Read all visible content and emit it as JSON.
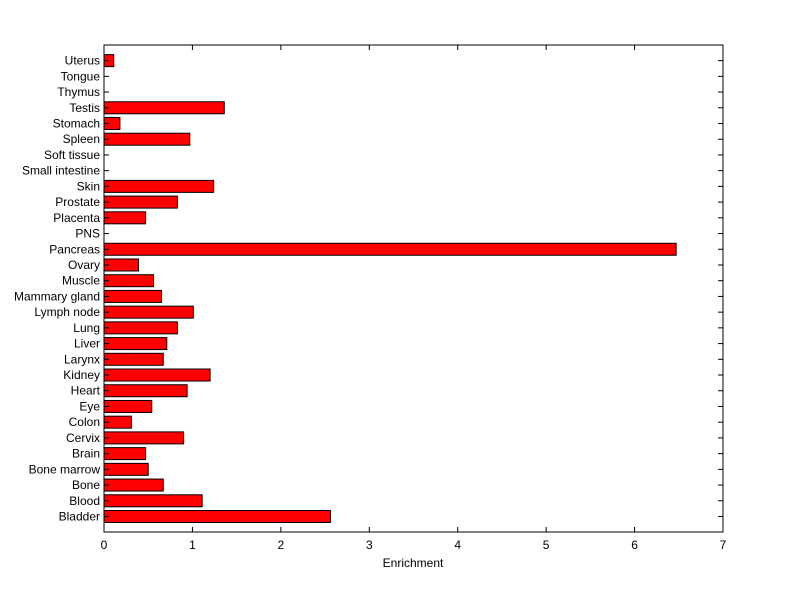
{
  "chart_data": {
    "type": "bar",
    "orientation": "horizontal",
    "title": "",
    "xlabel": "Enrichment",
    "ylabel": "",
    "xlim": [
      0,
      7
    ],
    "xticks": [
      "0",
      "1",
      "2",
      "3",
      "4",
      "5",
      "6",
      "7"
    ],
    "grid": false,
    "bar_color": "#ff0000",
    "bar_edge_color": "#000000",
    "categories": [
      "Bladder",
      "Blood",
      "Bone",
      "Bone marrow",
      "Brain",
      "Cervix",
      "Colon",
      "Eye",
      "Heart",
      "Kidney",
      "Larynx",
      "Liver",
      "Lung",
      "Lymph node",
      "Mammary gland",
      "Muscle",
      "Ovary",
      "Pancreas",
      "PNS",
      "Placenta",
      "Prostate",
      "Skin",
      "Small intestine",
      "Soft tissue",
      "Spleen",
      "Stomach",
      "Testis",
      "Thymus",
      "Tongue",
      "Uterus"
    ],
    "values": [
      2.56,
      1.11,
      0.67,
      0.5,
      0.47,
      0.9,
      0.31,
      0.54,
      0.94,
      1.2,
      0.67,
      0.71,
      0.83,
      1.01,
      0.65,
      0.56,
      0.39,
      6.47,
      0,
      0.47,
      0.83,
      1.24,
      0,
      0,
      0.97,
      0.18,
      1.36,
      0,
      0,
      0.11
    ]
  }
}
